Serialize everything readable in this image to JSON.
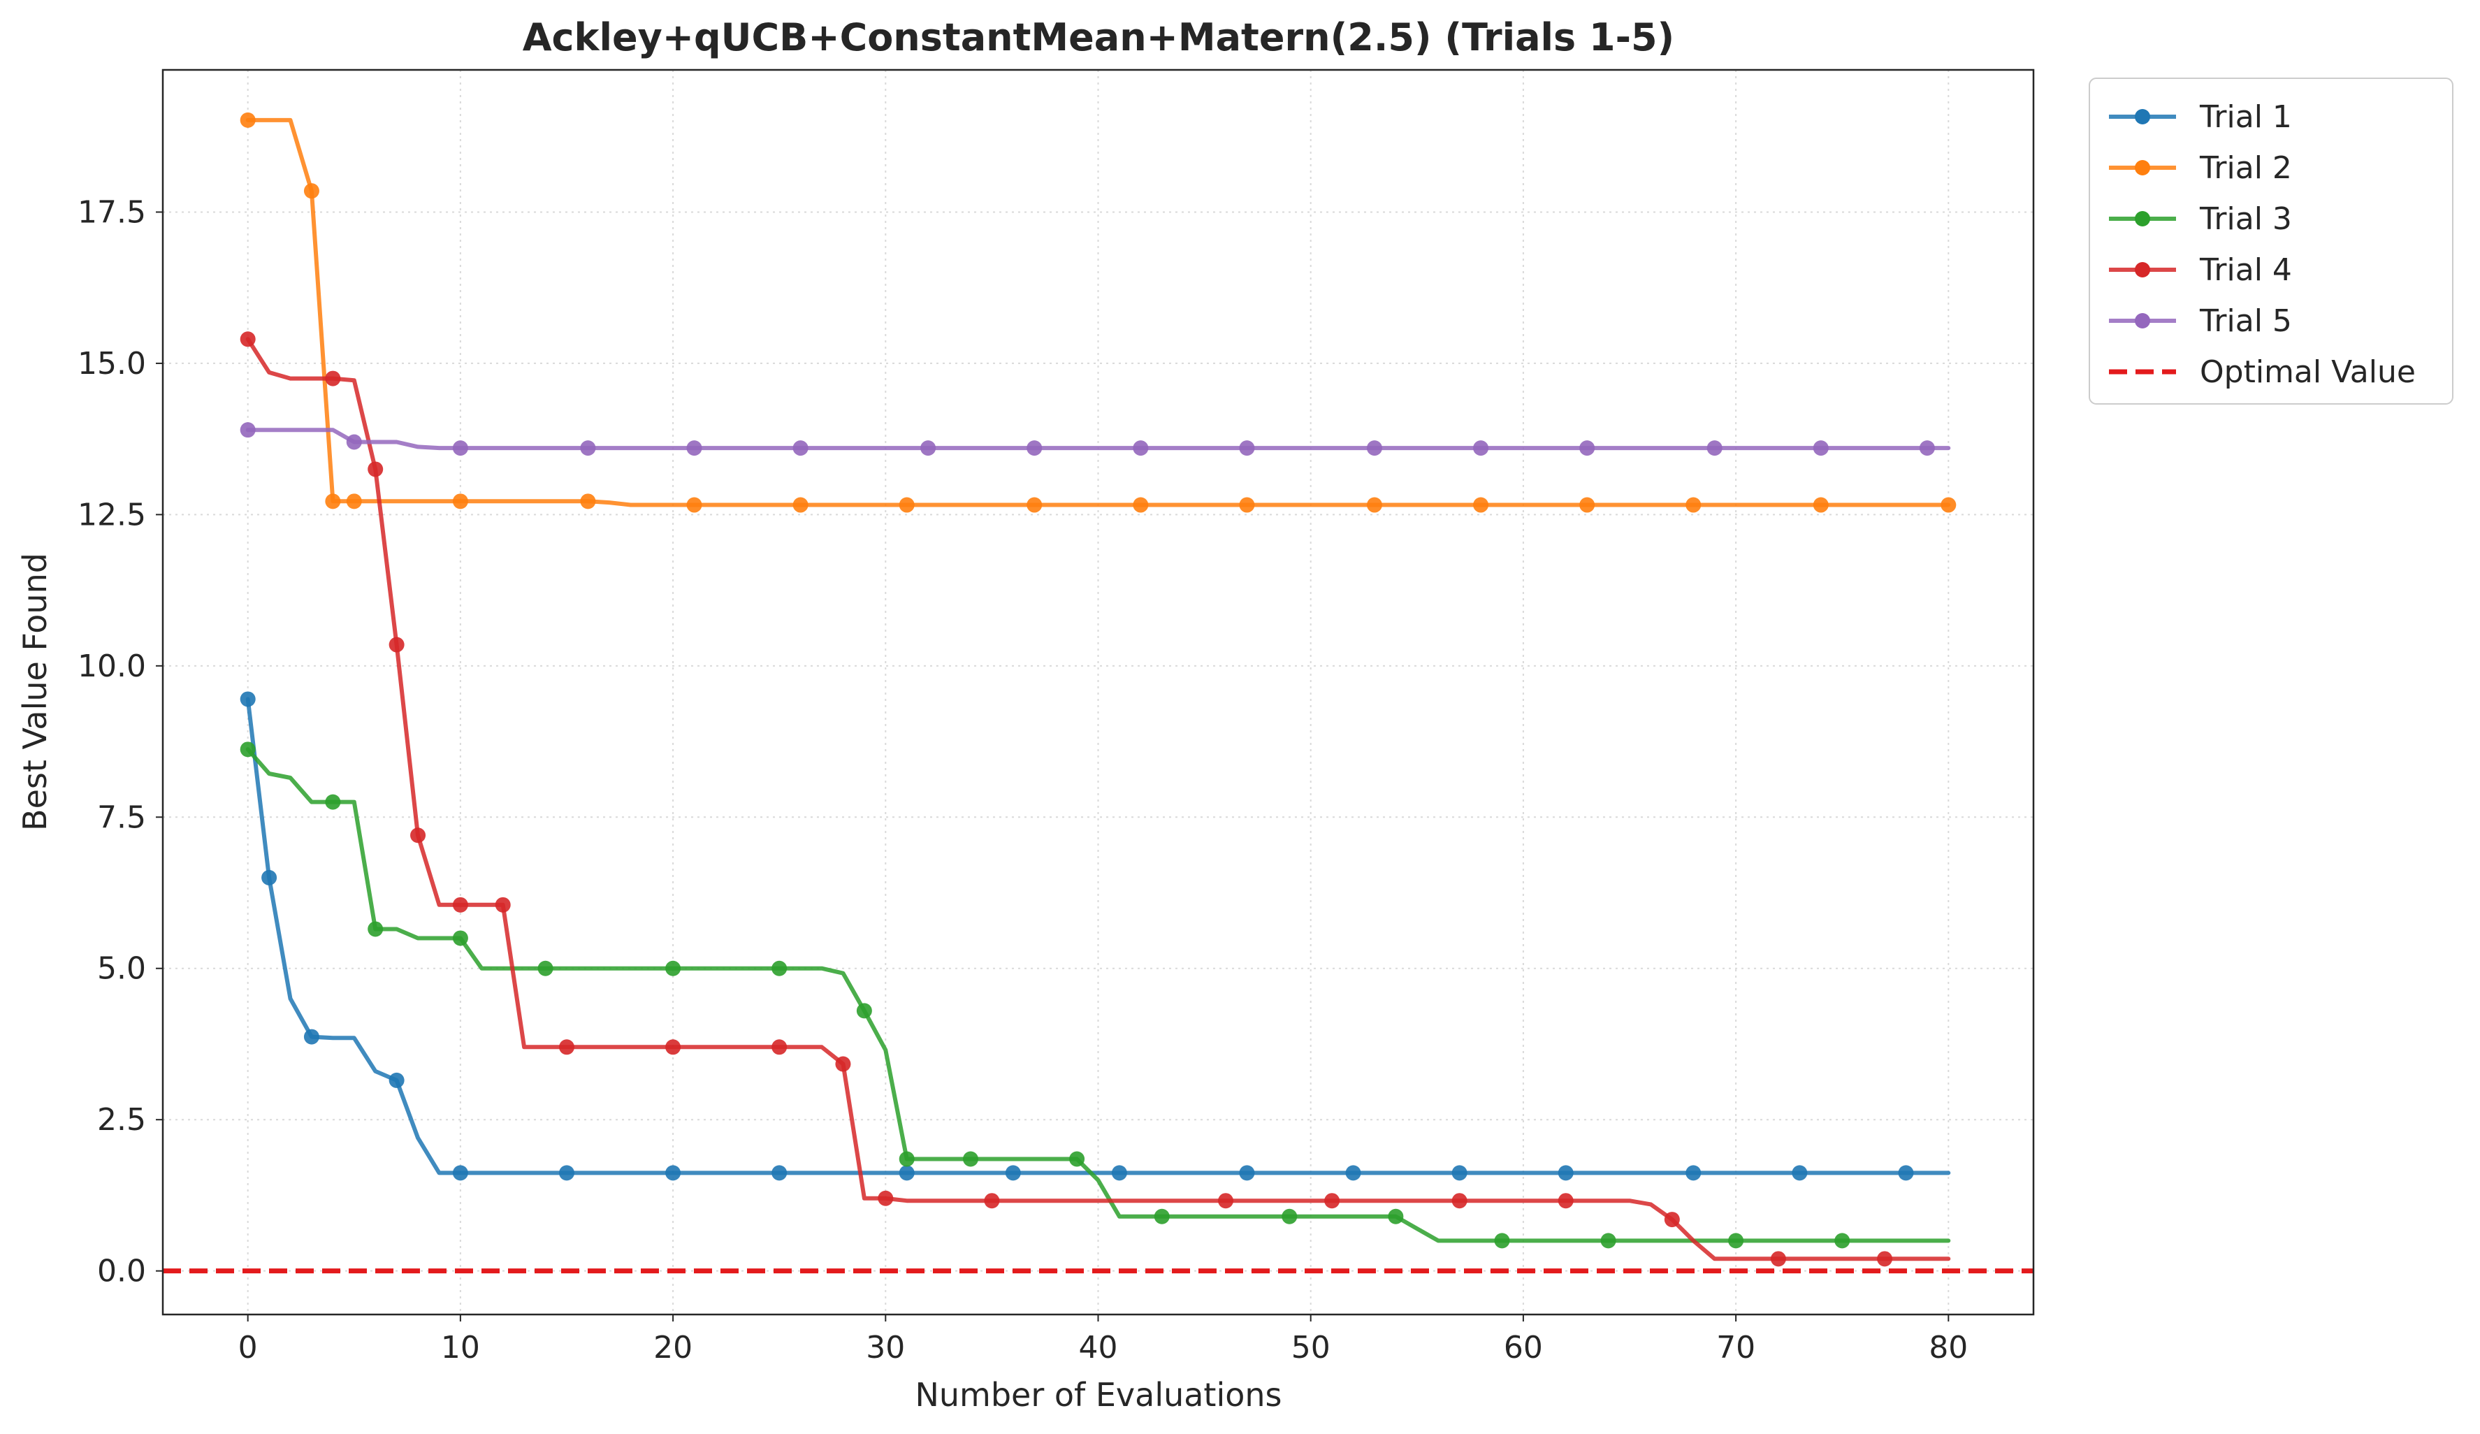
{
  "chart_data": {
    "type": "line",
    "title": "Ackley+qUCB+ConstantMean+Matern(2.5) (Trials 1-5)",
    "xlabel": "Number of Evaluations",
    "ylabel": "Best Value Found",
    "xlim": [
      -4,
      84
    ],
    "ylim": [
      -0.72,
      19.85
    ],
    "xticks": [
      0,
      10,
      20,
      30,
      40,
      50,
      60,
      70,
      80
    ],
    "xtick_labels": [
      "0",
      "10",
      "20",
      "30",
      "40",
      "50",
      "60",
      "70",
      "80"
    ],
    "yticks": [
      0,
      2.5,
      5,
      7.5,
      10,
      12.5,
      15,
      17.5
    ],
    "ytick_labels": [
      "0.0",
      "2.5",
      "5.0",
      "7.5",
      "10.0",
      "12.5",
      "15.0",
      "17.5"
    ],
    "grid": true,
    "legend_position": "outside-right",
    "series": [
      {
        "name": "Trial 1",
        "color": "#1f77b4",
        "x": [
          0,
          1,
          2,
          3,
          4,
          5,
          6,
          7,
          8,
          9,
          10,
          80
        ],
        "y": [
          9.45,
          6.5,
          4.5,
          3.87,
          3.85,
          3.85,
          3.3,
          3.15,
          2.2,
          1.62,
          1.62,
          1.62
        ],
        "markers_x": [
          0,
          1,
          3,
          7,
          10,
          15,
          20,
          25,
          31,
          36,
          41,
          47,
          52,
          57,
          62,
          68,
          73,
          78
        ]
      },
      {
        "name": "Trial 2",
        "color": "#ff7f0e",
        "x": [
          0,
          2,
          3,
          4,
          5,
          16,
          17,
          18,
          80
        ],
        "y": [
          19.02,
          19.02,
          17.85,
          12.72,
          12.72,
          12.72,
          12.7,
          12.66,
          12.66
        ],
        "markers_x": [
          0,
          3,
          4,
          5,
          10,
          16,
          21,
          26,
          31,
          37,
          42,
          47,
          53,
          58,
          63,
          68,
          74,
          80
        ]
      },
      {
        "name": "Trial 3",
        "color": "#2ca02c",
        "x": [
          0,
          1,
          2,
          3,
          4,
          5,
          6,
          7,
          8,
          10,
          11,
          27,
          28,
          29,
          30,
          31,
          39,
          40,
          41,
          54,
          55,
          56,
          80
        ],
        "y": [
          8.62,
          8.22,
          8.15,
          7.75,
          7.75,
          7.75,
          5.65,
          5.65,
          5.5,
          5.5,
          5.0,
          5.0,
          4.92,
          4.3,
          3.65,
          1.85,
          1.85,
          1.5,
          0.9,
          0.9,
          0.7,
          0.5,
          0.5
        ],
        "markers_x": [
          0,
          4,
          6,
          10,
          14,
          20,
          25,
          29,
          31,
          34,
          39,
          43,
          49,
          54,
          59,
          64,
          70,
          75
        ]
      },
      {
        "name": "Trial 4",
        "color": "#d62728",
        "x": [
          0,
          1,
          2,
          3,
          4,
          5,
          6,
          7,
          8,
          9,
          10,
          11,
          12,
          13,
          27,
          28,
          29,
          30,
          31,
          65,
          66,
          67,
          68,
          69,
          80
        ],
        "y": [
          15.4,
          14.85,
          14.75,
          14.75,
          14.75,
          14.72,
          13.25,
          10.35,
          7.2,
          6.05,
          6.05,
          6.05,
          6.05,
          3.7,
          3.7,
          3.42,
          1.2,
          1.2,
          1.16,
          1.16,
          1.1,
          0.85,
          0.5,
          0.2,
          0.2
        ],
        "markers_x": [
          0,
          4,
          6,
          7,
          8,
          10,
          12,
          15,
          20,
          25,
          28,
          30,
          35,
          46,
          51,
          57,
          62,
          67,
          72,
          77
        ]
      },
      {
        "name": "Trial 5",
        "color": "#9467bd",
        "x": [
          0,
          4,
          5,
          7,
          8,
          9,
          80
        ],
        "y": [
          13.9,
          13.9,
          13.7,
          13.7,
          13.62,
          13.6,
          13.6
        ],
        "markers_x": [
          0,
          5,
          10,
          16,
          21,
          26,
          32,
          37,
          42,
          47,
          53,
          58,
          63,
          69,
          74,
          79
        ]
      }
    ],
    "reference_line": {
      "name": "Optimal Value",
      "y": 0,
      "color": "#e31a1c",
      "style": "dashed"
    }
  }
}
